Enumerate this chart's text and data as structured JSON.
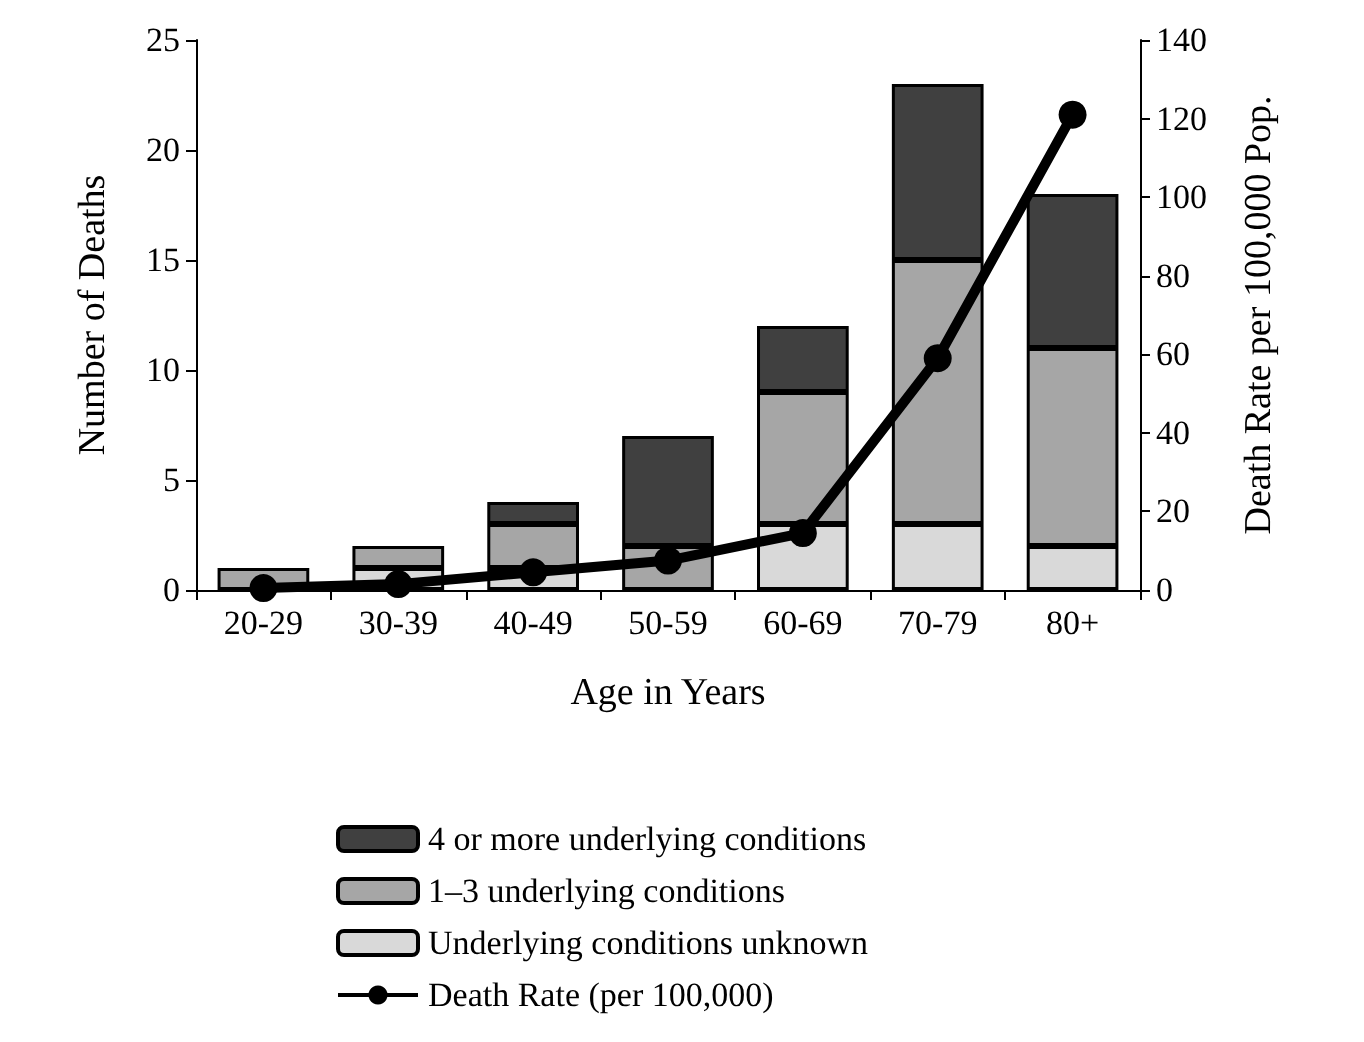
{
  "chart_data": {
    "type": "bar",
    "stacked": true,
    "xlabel": "Age in Years",
    "ylabel": "Number of Deaths",
    "y2label": "Death Rate per 100,000 Pop.",
    "categories": [
      "20-29",
      "30-39",
      "40-49",
      "50-59",
      "60-69",
      "70-79",
      "80+"
    ],
    "series": [
      {
        "name": "Underlying conditions unknown",
        "color": "#d9d9d9",
        "values": [
          0,
          1,
          1,
          0,
          3,
          3,
          2
        ]
      },
      {
        "name": "1–3 underlying conditions",
        "color": "#a6a6a6",
        "values": [
          1,
          1,
          2,
          2,
          6,
          12,
          9
        ]
      },
      {
        "name": "4 or more underlying conditions",
        "color": "#404040",
        "values": [
          0,
          0,
          1,
          5,
          3,
          8,
          7
        ]
      },
      {
        "name": "Death Rate (per 100,000)",
        "type": "line",
        "axis": "y2",
        "color": "#000000",
        "marker": "circle",
        "values": [
          0.5,
          1.5,
          4.5,
          7.5,
          14.5,
          59,
          121
        ]
      }
    ],
    "ylim": [
      0,
      25
    ],
    "yticks": [
      0,
      5,
      10,
      15,
      20,
      25
    ],
    "y2lim": [
      0,
      140
    ],
    "y2ticks": [
      0,
      20,
      40,
      60,
      80,
      100,
      120,
      140
    ],
    "grid": false,
    "legend": "bottom"
  }
}
